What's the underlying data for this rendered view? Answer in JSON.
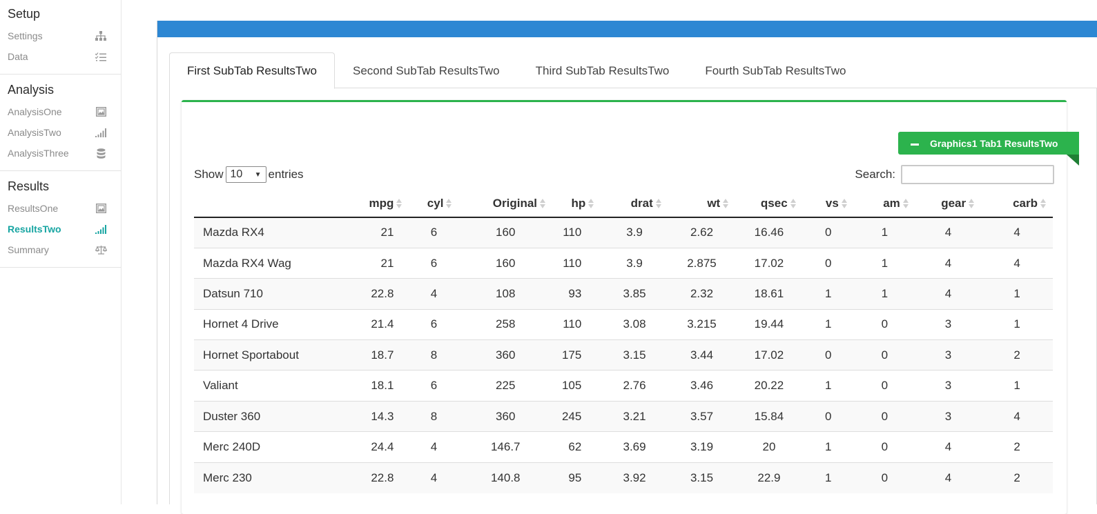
{
  "sidebar": {
    "sections": [
      {
        "header": "Setup",
        "items": [
          {
            "label": "Settings",
            "icon": "sitemap-icon"
          },
          {
            "label": "Data",
            "icon": "list-check-icon"
          }
        ]
      },
      {
        "header": "Analysis",
        "items": [
          {
            "label": "AnalysisOne",
            "icon": "image-frame-icon"
          },
          {
            "label": "AnalysisTwo",
            "icon": "signal-bars-icon"
          },
          {
            "label": "AnalysisThree",
            "icon": "database-icon"
          }
        ]
      },
      {
        "header": "Results",
        "items": [
          {
            "label": "ResultsOne",
            "icon": "image-frame-icon"
          },
          {
            "label": "ResultsTwo",
            "icon": "signal-bars-icon",
            "active": true
          },
          {
            "label": "Summary",
            "icon": "balance-scale-icon"
          }
        ]
      }
    ]
  },
  "tabs": [
    "First SubTab ResultsTwo",
    "Second SubTab ResultsTwo",
    "Third SubTab ResultsTwo",
    "Fourth SubTab ResultsTwo"
  ],
  "active_tab": 0,
  "ribbon_label": "Graphics1 Tab1 ResultsTwo",
  "length": {
    "show_label": "Show",
    "value": "10",
    "entries_label": "entries"
  },
  "search": {
    "label": "Search:",
    "value": ""
  },
  "colors": {
    "header": "#2d87d3",
    "accent_green": "#2cb34d",
    "active_sidebar": "#17a5a2"
  },
  "table": {
    "columns": [
      "",
      "mpg",
      "cyl",
      "Original",
      "hp",
      "drat",
      "wt",
      "qsec",
      "vs",
      "am",
      "gear",
      "carb"
    ],
    "rows": [
      [
        "Mazda RX4",
        "21",
        "6",
        "160",
        "110",
        "3.9",
        "2.62",
        "16.46",
        "0",
        "1",
        "4",
        "4"
      ],
      [
        "Mazda RX4 Wag",
        "21",
        "6",
        "160",
        "110",
        "3.9",
        "2.875",
        "17.02",
        "0",
        "1",
        "4",
        "4"
      ],
      [
        "Datsun 710",
        "22.8",
        "4",
        "108",
        "93",
        "3.85",
        "2.32",
        "18.61",
        "1",
        "1",
        "4",
        "1"
      ],
      [
        "Hornet 4 Drive",
        "21.4",
        "6",
        "258",
        "110",
        "3.08",
        "3.215",
        "19.44",
        "1",
        "0",
        "3",
        "1"
      ],
      [
        "Hornet Sportabout",
        "18.7",
        "8",
        "360",
        "175",
        "3.15",
        "3.44",
        "17.02",
        "0",
        "0",
        "3",
        "2"
      ],
      [
        "Valiant",
        "18.1",
        "6",
        "225",
        "105",
        "2.76",
        "3.46",
        "20.22",
        "1",
        "0",
        "3",
        "1"
      ],
      [
        "Duster 360",
        "14.3",
        "8",
        "360",
        "245",
        "3.21",
        "3.57",
        "15.84",
        "0",
        "0",
        "3",
        "4"
      ],
      [
        "Merc 240D",
        "24.4",
        "4",
        "146.7",
        "62",
        "3.69",
        "3.19",
        "20",
        "1",
        "0",
        "4",
        "2"
      ],
      [
        "Merc 230",
        "22.8",
        "4",
        "140.8",
        "95",
        "3.92",
        "3.15",
        "22.9",
        "1",
        "0",
        "4",
        "2"
      ]
    ]
  }
}
